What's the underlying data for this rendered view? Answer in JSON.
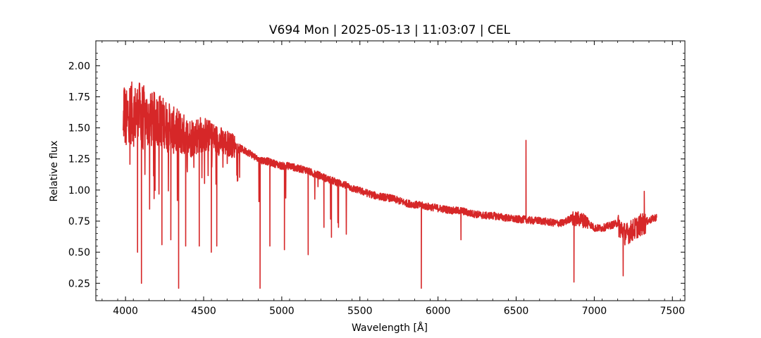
{
  "chart_data": {
    "type": "line",
    "title": "V694 Mon | 2025-05-13 | 11:03:07 | CEL",
    "xlabel": "Wavelength [Å]",
    "ylabel": "Relative flux",
    "xlim": [
      3810,
      7580
    ],
    "ylim": [
      0.11,
      2.2
    ],
    "x_ticks": [
      4000,
      4500,
      5000,
      5500,
      6000,
      6500,
      7000,
      7500
    ],
    "y_ticks": [
      0.25,
      0.5,
      0.75,
      1.0,
      1.25,
      1.5,
      1.75,
      2.0
    ],
    "x_tick_labels": [
      "4000",
      "4500",
      "5000",
      "5500",
      "6000",
      "6500",
      "7000",
      "7500"
    ],
    "y_tick_labels": [
      "0.25",
      "0.50",
      "0.75",
      "1.00",
      "1.25",
      "1.50",
      "1.75",
      "2.00"
    ],
    "grid": false,
    "series": [
      {
        "color": "#d62728",
        "x": [
          3985,
          3990,
          4000,
          4010,
          4020,
          4050,
          4100,
          4150,
          4200,
          4250,
          4300,
          4350,
          4400,
          4450,
          4500,
          4550,
          4600,
          4650,
          4700,
          4750,
          4800,
          4850,
          4900,
          4950,
          5000,
          5050,
          5100,
          5150,
          5200,
          5250,
          5300,
          5350,
          5400,
          5450,
          5500,
          5550,
          5600,
          5650,
          5700,
          5750,
          5800,
          5850,
          5900,
          5950,
          6000,
          6050,
          6100,
          6150,
          6200,
          6250,
          6300,
          6350,
          6400,
          6450,
          6500,
          6550,
          6600,
          6650,
          6700,
          6750,
          6800,
          6850,
          6900,
          6950,
          7000,
          7050,
          7100,
          7150,
          7200,
          7250,
          7300,
          7350,
          7400
        ],
        "y": [
          1.45,
          1.75,
          1.6,
          1.6,
          1.7,
          1.65,
          1.68,
          1.6,
          1.62,
          1.58,
          1.52,
          1.5,
          1.45,
          1.47,
          1.48,
          1.45,
          1.42,
          1.4,
          1.37,
          1.33,
          1.3,
          1.25,
          1.24,
          1.22,
          1.2,
          1.2,
          1.18,
          1.17,
          1.14,
          1.12,
          1.09,
          1.07,
          1.05,
          1.02,
          1.0,
          0.98,
          0.96,
          0.95,
          0.94,
          0.92,
          0.9,
          0.89,
          0.88,
          0.87,
          0.86,
          0.85,
          0.84,
          0.84,
          0.82,
          0.81,
          0.8,
          0.8,
          0.79,
          0.78,
          0.77,
          0.77,
          0.76,
          0.76,
          0.75,
          0.74,
          0.74,
          0.78,
          0.78,
          0.76,
          0.7,
          0.7,
          0.72,
          0.74,
          0.66,
          0.7,
          0.74,
          0.76,
          0.79
        ],
        "absorption_lines": [
          {
            "x": 4102,
            "y": 0.25
          },
          {
            "x": 4340,
            "y": 0.21
          },
          {
            "x": 4861,
            "y": 0.21
          },
          {
            "x": 5017,
            "y": 0.52
          },
          {
            "x": 5169,
            "y": 0.48
          },
          {
            "x": 5893,
            "y": 0.21
          },
          {
            "x": 4077,
            "y": 0.5
          },
          {
            "x": 4233,
            "y": 0.56
          },
          {
            "x": 4290,
            "y": 0.6
          },
          {
            "x": 4385,
            "y": 0.55
          },
          {
            "x": 4472,
            "y": 0.55
          },
          {
            "x": 4549,
            "y": 0.5
          },
          {
            "x": 4584,
            "y": 0.55
          },
          {
            "x": 4924,
            "y": 0.55
          },
          {
            "x": 5270,
            "y": 0.7
          },
          {
            "x": 5318,
            "y": 0.62
          },
          {
            "x": 5363,
            "y": 0.7
          },
          {
            "x": 6147,
            "y": 0.6
          },
          {
            "x": 6870,
            "y": 0.26
          },
          {
            "x": 7185,
            "y": 0.31
          }
        ],
        "emission_lines": [
          {
            "x": 4300,
            "y": 1.55
          },
          {
            "x": 6563,
            "y": 1.4
          },
          {
            "x": 7320,
            "y": 0.99
          }
        ]
      }
    ]
  }
}
